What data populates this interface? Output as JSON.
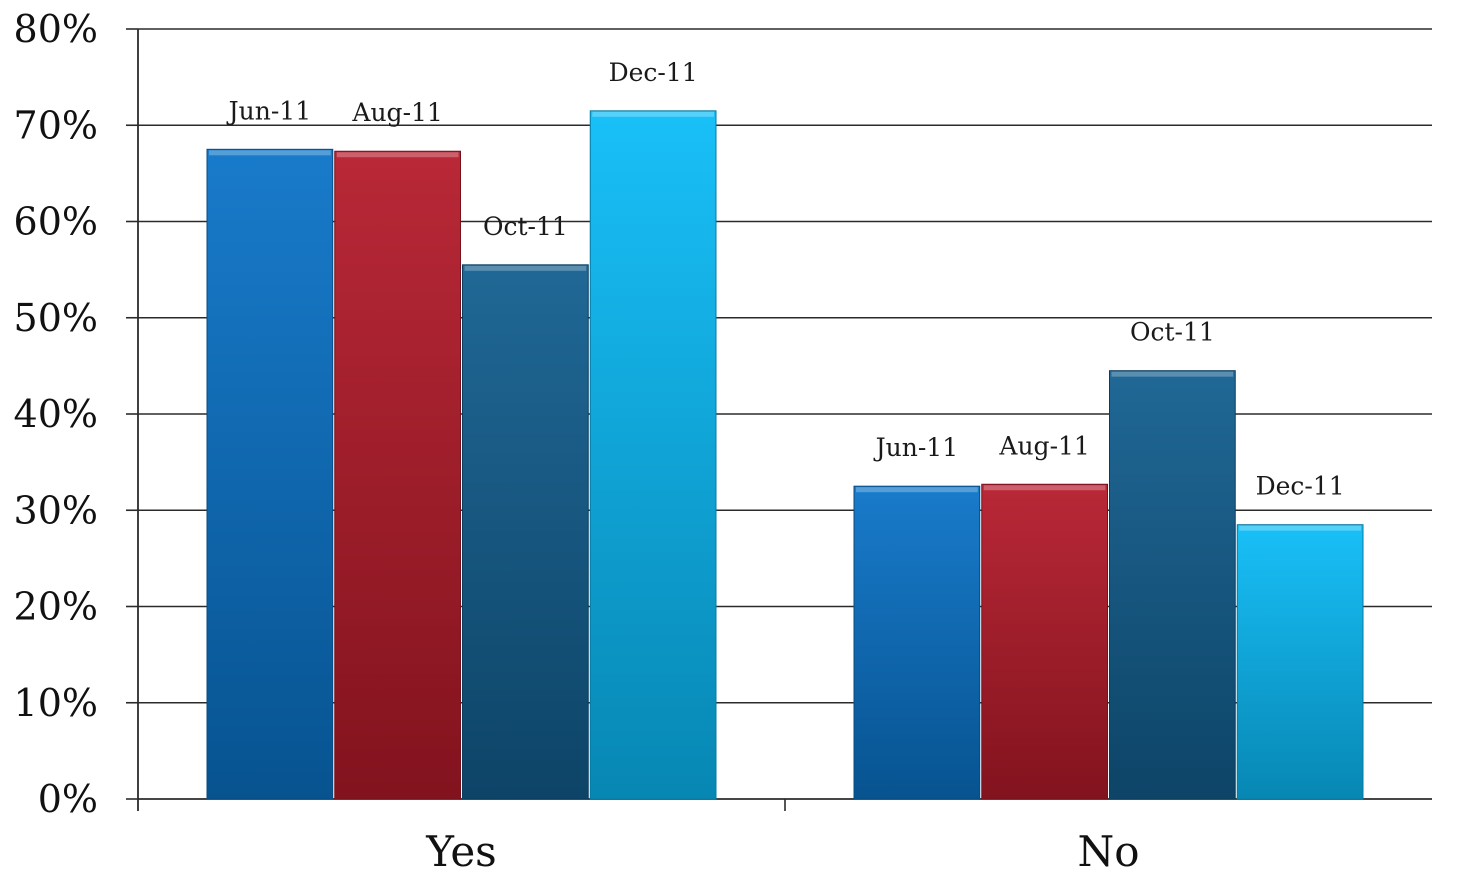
{
  "chart_data": {
    "type": "bar",
    "categories": [
      "Yes",
      "No"
    ],
    "series": [
      {
        "label": "Jun-11",
        "color": "#0A73C8",
        "values": [
          67.5,
          32.5
        ]
      },
      {
        "label": "Aug-11",
        "color": "#B51A2A",
        "values": [
          67.3,
          32.7
        ]
      },
      {
        "label": "Oct-11",
        "color": "#125E8F",
        "values": [
          55.5,
          44.5
        ]
      },
      {
        "label": "Dec-11",
        "color": "#0ABCF8",
        "values": [
          71.5,
          28.5
        ]
      }
    ],
    "ylim": [
      0,
      80
    ],
    "yticks": [
      "0%",
      "10%",
      "20%",
      "30%",
      "40%",
      "50%",
      "60%",
      "70%",
      "80%"
    ],
    "y_tick_values": [
      0,
      10,
      20,
      30,
      40,
      50,
      60,
      70,
      80
    ],
    "grid": true,
    "legend": "none",
    "data_labels": "series-name"
  }
}
